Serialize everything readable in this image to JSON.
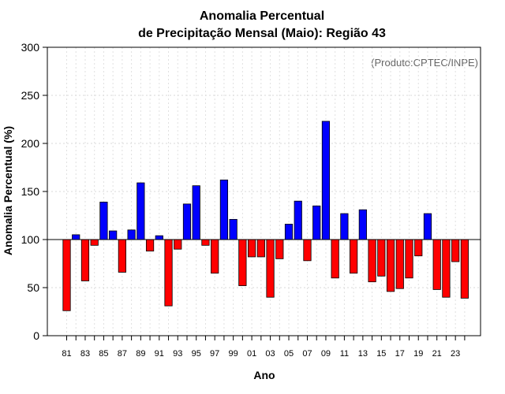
{
  "chart_data": {
    "type": "bar",
    "title_line1": "Anomalia Percentual",
    "title_line2": "de Precipitação Mensal (Maio): Região 43",
    "xlabel": "Ano",
    "ylabel": "Anomalia Percentual (%)",
    "annotation": "(Produto:CPTEC/INPE)",
    "ylim": [
      0,
      300
    ],
    "yticks": [
      0,
      50,
      100,
      150,
      200,
      250,
      300
    ],
    "baseline": 100,
    "colors": {
      "above": "#0000ff",
      "below": "#ff0000"
    },
    "categories": [
      "81",
      "82",
      "83",
      "84",
      "85",
      "86",
      "87",
      "88",
      "89",
      "90",
      "91",
      "92",
      "93",
      "94",
      "95",
      "96",
      "97",
      "98",
      "99",
      "00",
      "01",
      "02",
      "03",
      "04",
      "05",
      "06",
      "07",
      "08",
      "09",
      "10",
      "11",
      "12",
      "13",
      "14",
      "15",
      "16",
      "17",
      "18",
      "19",
      "20",
      "21",
      "22",
      "23",
      "24"
    ],
    "tick_labels": [
      "81",
      "83",
      "85",
      "87",
      "89",
      "91",
      "93",
      "95",
      "97",
      "99",
      "01",
      "03",
      "05",
      "07",
      "09",
      "11",
      "13",
      "15",
      "17",
      "19",
      "21",
      "23"
    ],
    "values": [
      26,
      105,
      57,
      94,
      139,
      109,
      66,
      110,
      159,
      88,
      104,
      31,
      90,
      137,
      156,
      94,
      65,
      162,
      121,
      52,
      82,
      82,
      40,
      80,
      116,
      140,
      78,
      135,
      223,
      60,
      127,
      65,
      131,
      56,
      62,
      46,
      49,
      60,
      83,
      127,
      48,
      40,
      77,
      39
    ],
    "grid": true
  }
}
